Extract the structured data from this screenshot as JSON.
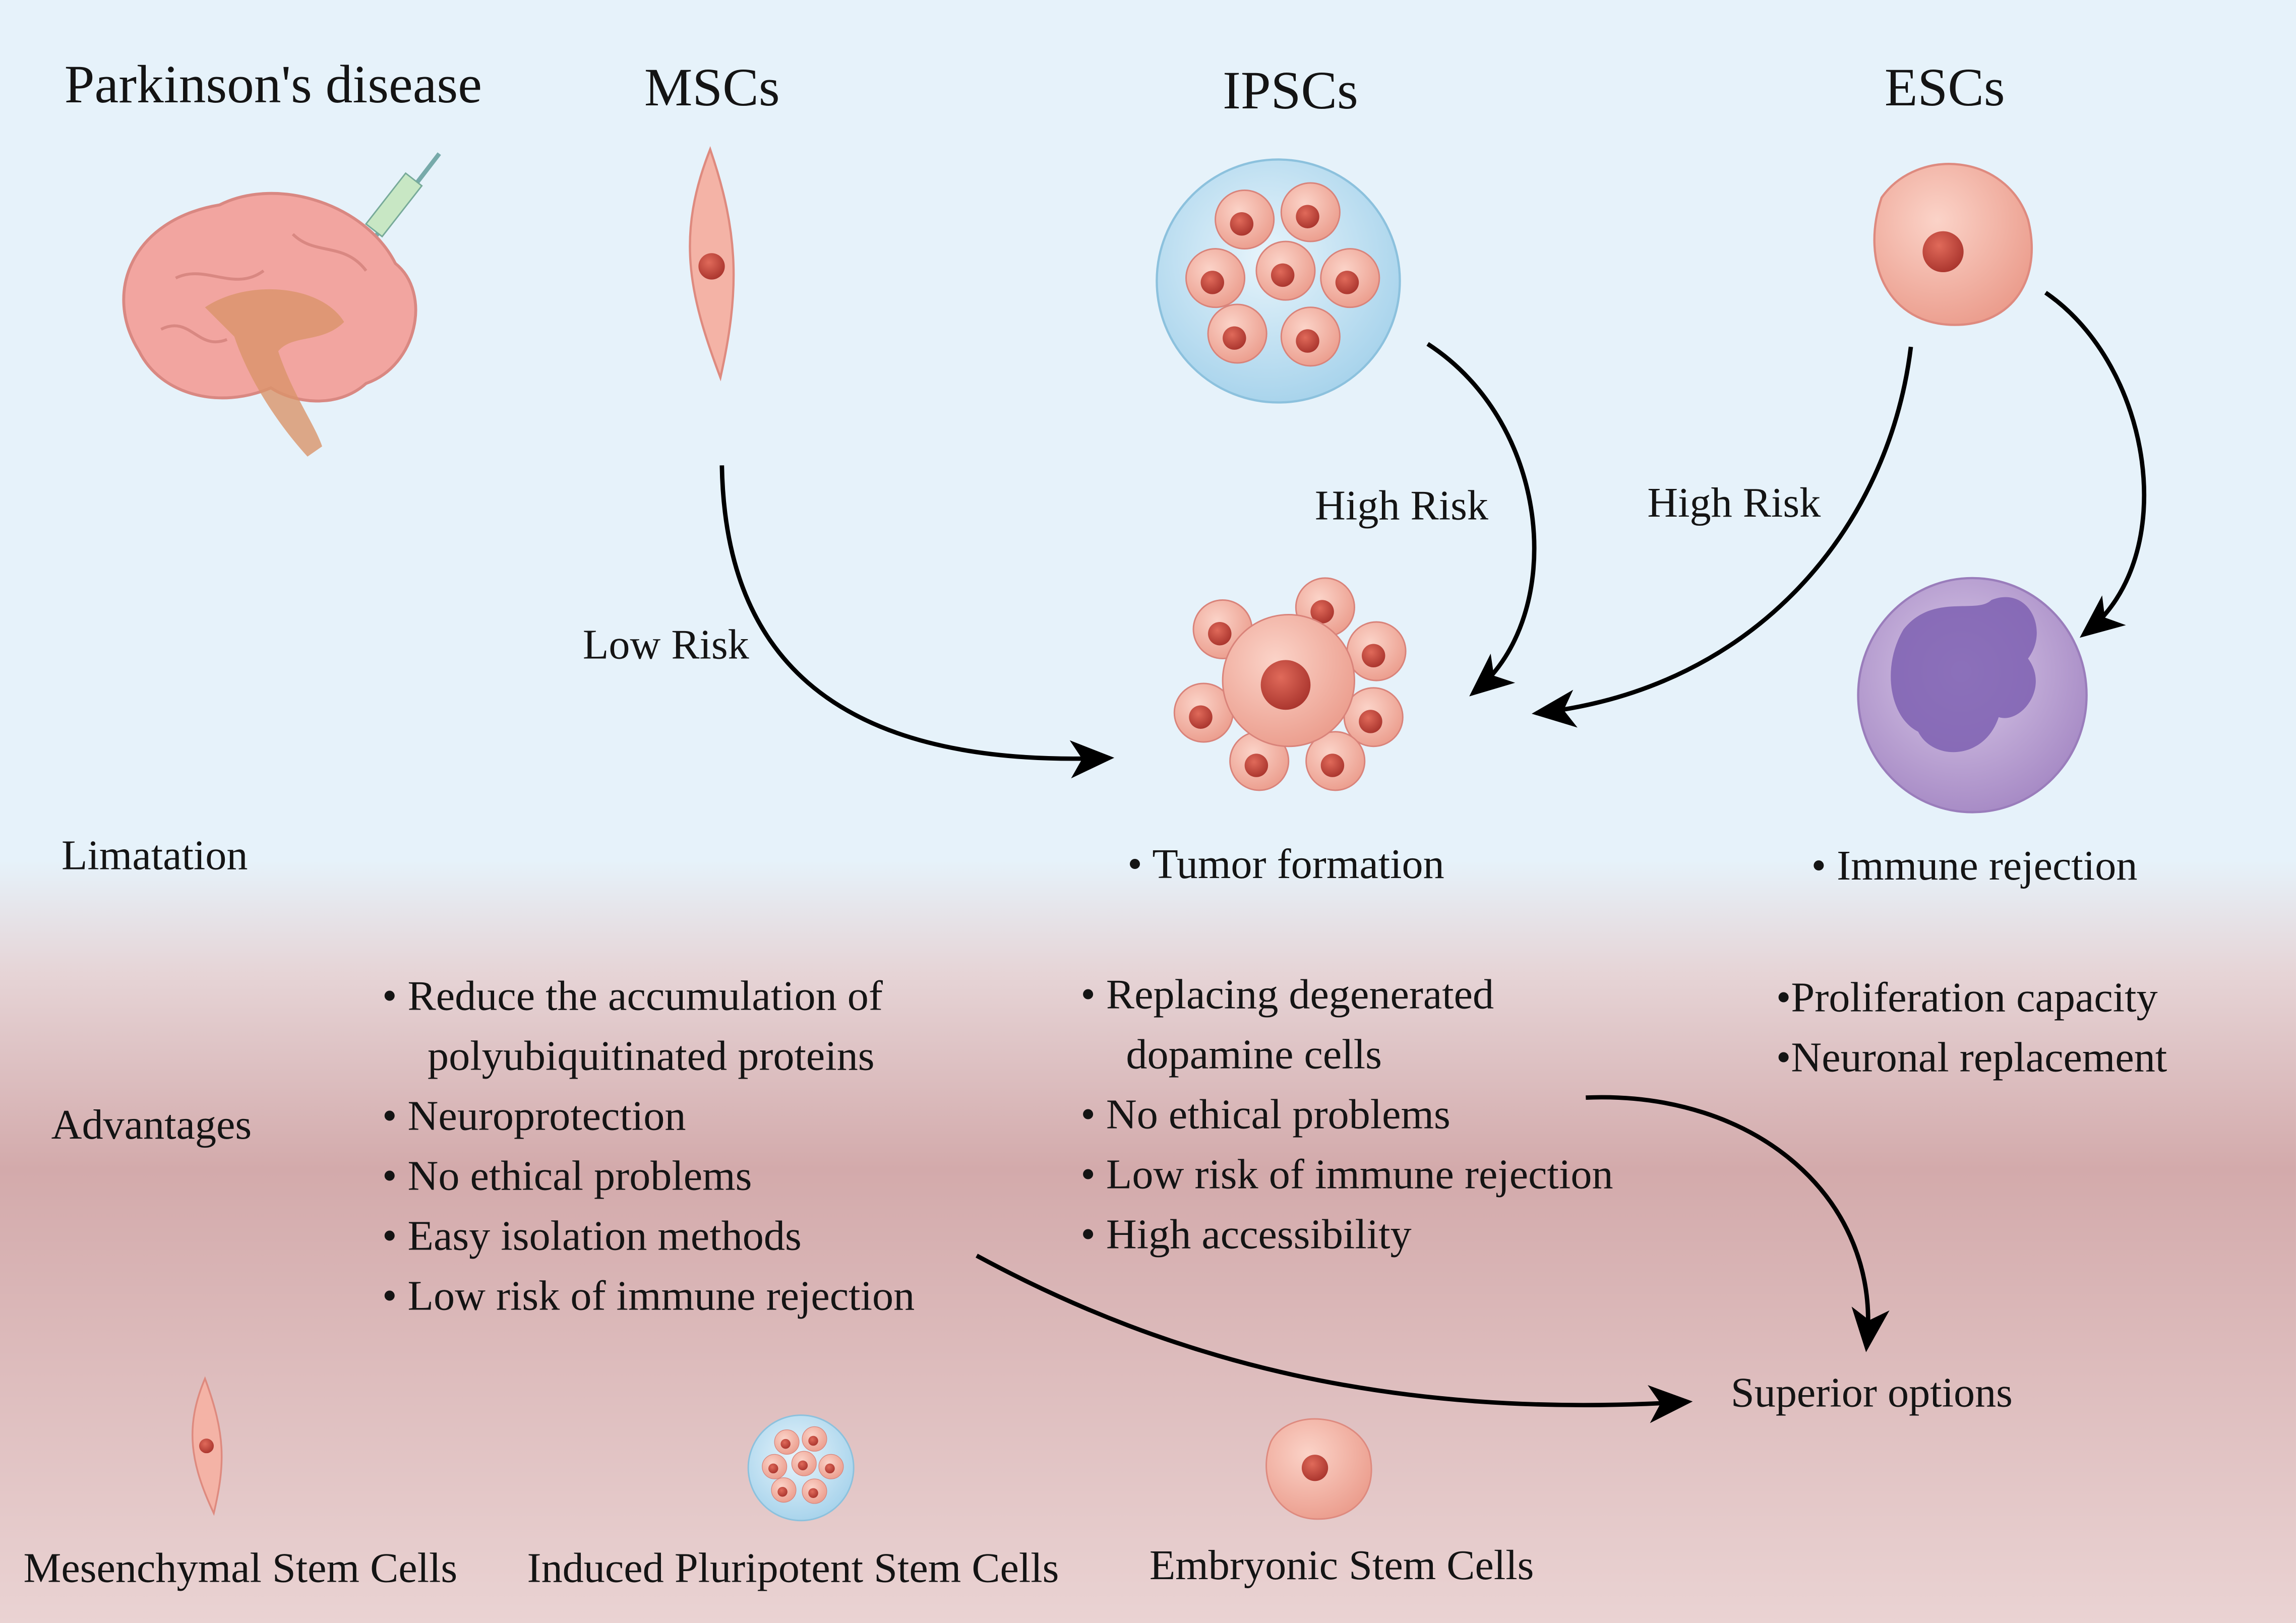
{
  "columns": {
    "disease": "Parkinson's disease",
    "mscs": "MSCs",
    "ipscs": "IPSCs",
    "escs": "ESCs"
  },
  "risks": {
    "msc": "Low Risk",
    "ipsc": "High Risk",
    "esc": "High Risk"
  },
  "rows": {
    "limitation": "Limatation",
    "advantages": "Advantages"
  },
  "limitations": {
    "tumor": "• Tumor formation",
    "immune": "• Immune rejection"
  },
  "advantages": {
    "msc": [
      "• Reduce the accumulation of",
      "polyubiquitinated proteins",
      "• Neuroprotection",
      "• No ethical problems",
      "• Easy isolation methods",
      "• Low risk of immune rejection"
    ],
    "ipsc": [
      "• Replacing degenerated",
      "dopamine cells",
      "• No ethical problems",
      "• Low risk of immune rejection",
      "• High accessibility"
    ],
    "esc": [
      "•Proliferation capacity",
      "•Neuronal replacement"
    ]
  },
  "outcome": "Superior options",
  "legend": [
    {
      "label": "Mesenchymal Stem Cells",
      "icon": "spindle-cell-icon"
    },
    {
      "label": "Induced Pluripotent Stem Cells",
      "icon": "cell-cluster-icon"
    },
    {
      "label": "Embryonic Stem Cells",
      "icon": "round-cell-icon"
    }
  ],
  "colors": {
    "top_bg": "#e6f2fa",
    "bottom_bg": "#d6b0b0",
    "cell": "#f0a89a",
    "nucleus": "#c9453c",
    "immune_cell": "#b59ad0",
    "arrow": "#000000"
  }
}
